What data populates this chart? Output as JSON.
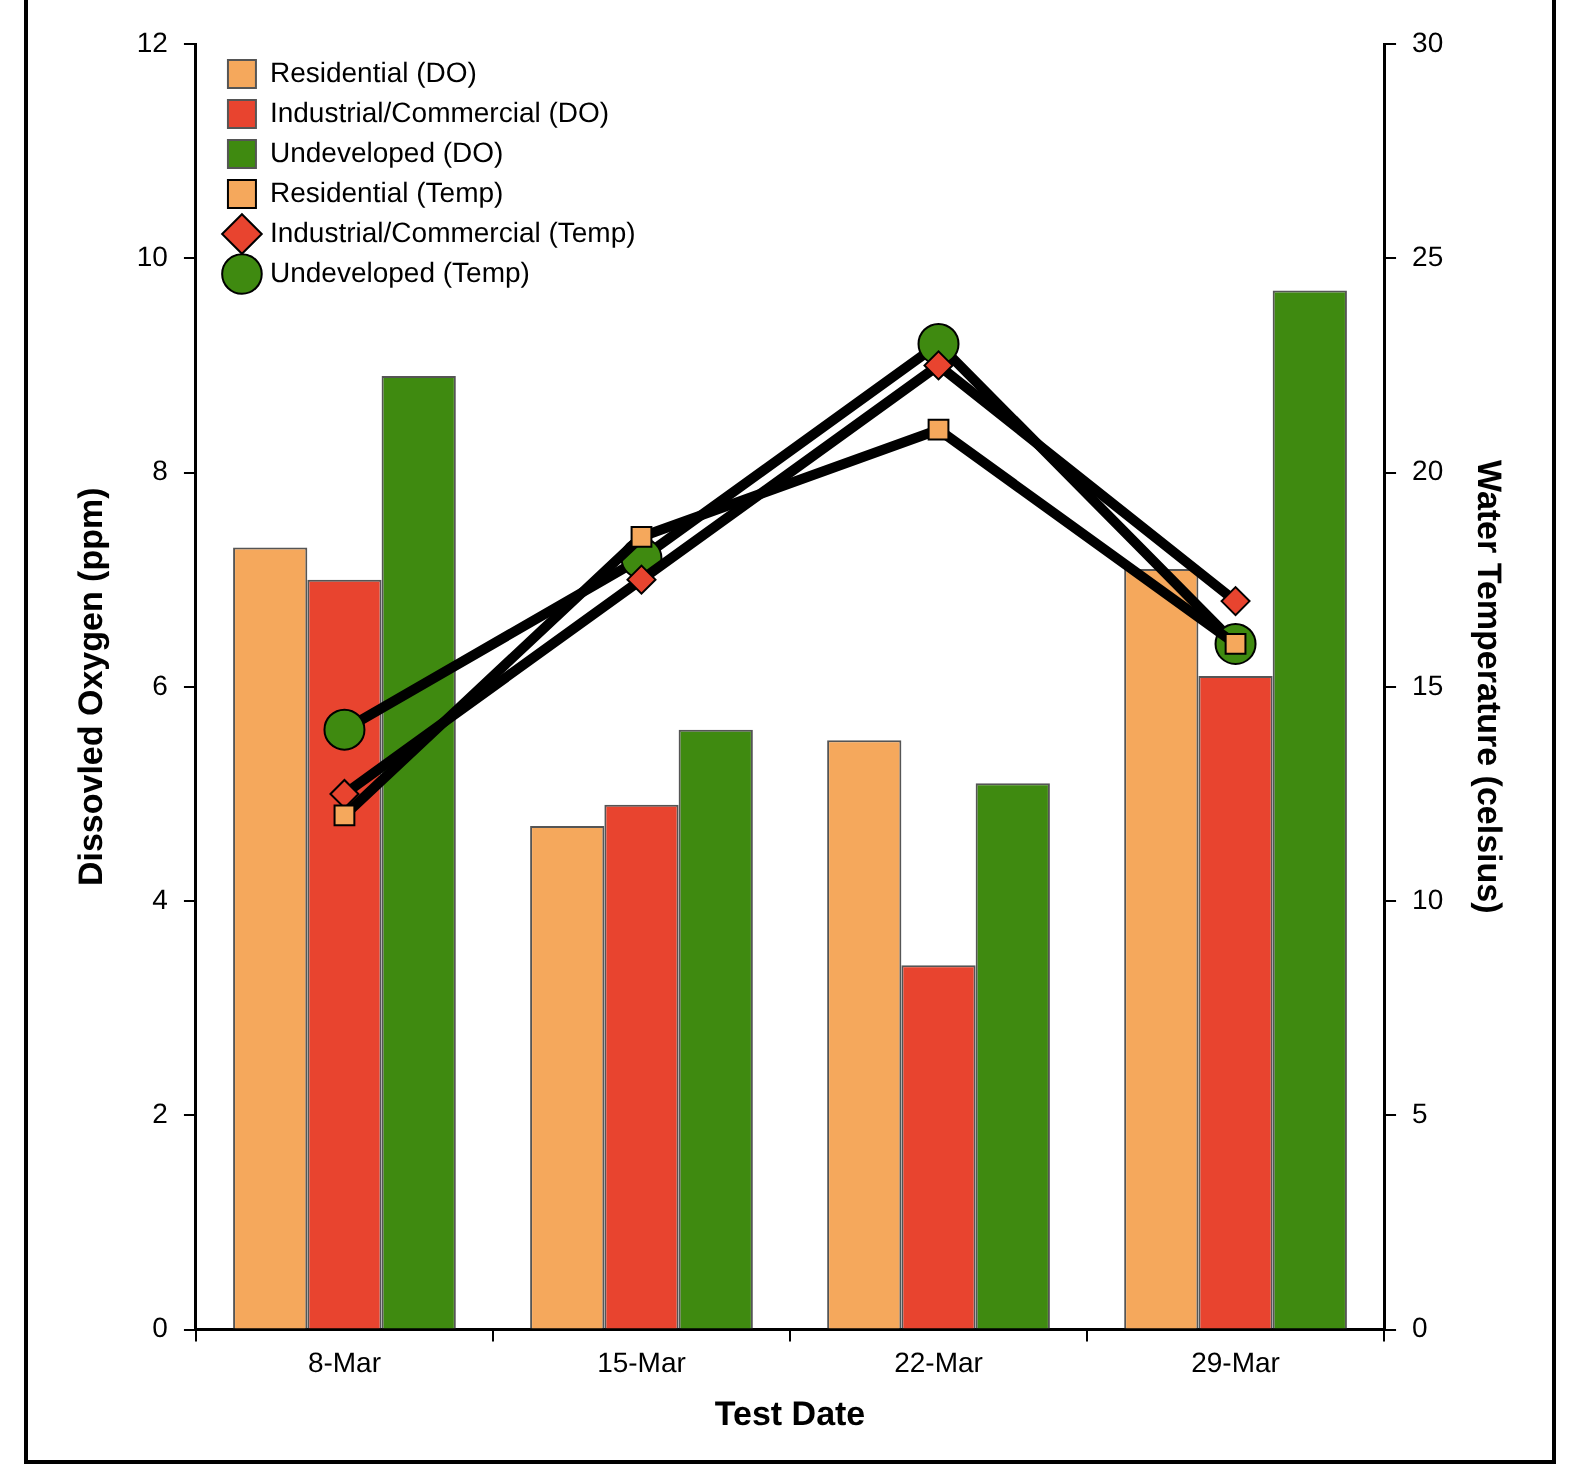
{
  "chart_data": {
    "type": "bar",
    "categories": [
      "8-Mar",
      "15-Mar",
      "22-Mar",
      "29-Mar"
    ],
    "xlabel": "Test Date",
    "ylabel": "Dissovled Oxygen (ppm)",
    "y2label": "Water Temperature (celsius)",
    "ylim": [
      0,
      12
    ],
    "yticks": [
      0,
      2,
      4,
      6,
      8,
      10,
      12
    ],
    "y2lim": [
      0,
      30
    ],
    "y2ticks": [
      0,
      5,
      10,
      15,
      20,
      25,
      30
    ],
    "grid": false,
    "legend": "top left",
    "series": [
      {
        "name": "Residential (DO)",
        "color": "#f5a85c",
        "values": [
          7.3,
          4.7,
          5.5,
          7.1
        ]
      },
      {
        "name": "Industrial/Commercial (DO)",
        "color": "#e8442f",
        "values": [
          7.0,
          4.9,
          3.4,
          6.1
        ]
      },
      {
        "name": "Undeveloped (DO)",
        "color": "#3f8a10",
        "values": [
          8.9,
          5.6,
          5.1,
          9.7
        ]
      },
      {
        "name": "Residential (Temp)",
        "type": "line",
        "axis": "y2",
        "marker": "square",
        "color": "#f5a85c",
        "values": [
          12.0,
          18.5,
          21.0,
          16.0
        ]
      },
      {
        "name": "Industrial/Commercial (Temp)",
        "type": "line",
        "axis": "y2",
        "marker": "diamond",
        "color": "#e8442f",
        "values": [
          12.5,
          17.5,
          22.5,
          17.0
        ]
      },
      {
        "name": "Undeveloped (Temp)",
        "type": "line",
        "axis": "y2",
        "marker": "circle",
        "color": "#3f8a10",
        "values": [
          14.0,
          18.0,
          23.0,
          16.0
        ]
      }
    ]
  }
}
